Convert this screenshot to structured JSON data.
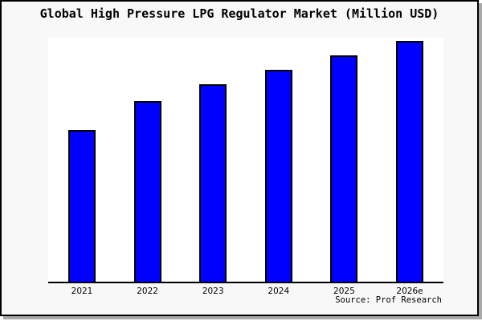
{
  "title": "Global High Pressure LPG Regulator Market (Million USD)",
  "source": "Source: Prof Research",
  "chart_data": {
    "type": "bar",
    "title": "Global High Pressure LPG Regulator Market (Million USD)",
    "categories": [
      "2021",
      "2022",
      "2023",
      "2024",
      "2025",
      "2026e"
    ],
    "values": [
      63,
      75,
      82,
      88,
      94,
      100
    ],
    "value_units": "relative index (no y-axis scale displayed; tallest bar 2026e = 100)",
    "xlabel": "",
    "ylabel": "",
    "ylim": [
      0,
      100
    ],
    "grid": false,
    "legend": false,
    "annotations": [
      "Source: Prof Research"
    ]
  },
  "colors": {
    "bar_fill": "#0000ff",
    "bar_border": "#000000",
    "background": "#f8f8f8",
    "plot_background": "#ffffff",
    "axis": "#000000",
    "frame_border": "#000000",
    "shadow": "#a9a9a9",
    "text": "#000000"
  }
}
